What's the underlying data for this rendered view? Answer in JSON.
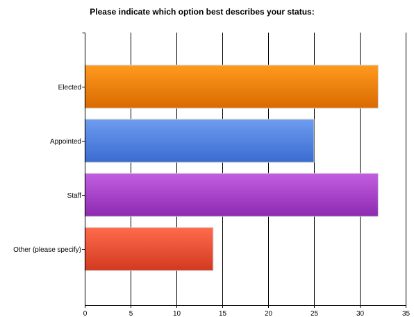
{
  "chart_data": {
    "type": "bar",
    "orientation": "horizontal",
    "title": "Please indicate which option best describes your status:",
    "categories": [
      "Elected",
      "Appointed",
      "Staff",
      "Other (please specify)"
    ],
    "values": [
      32,
      25,
      32,
      14
    ],
    "colors": [
      "#f07f0a",
      "#4f7fe0",
      "#a43bc4",
      "#e0452c"
    ],
    "xlim": [
      0,
      35
    ],
    "xticks": [
      0,
      5,
      10,
      15,
      20,
      25,
      30,
      35
    ],
    "grid": true
  }
}
